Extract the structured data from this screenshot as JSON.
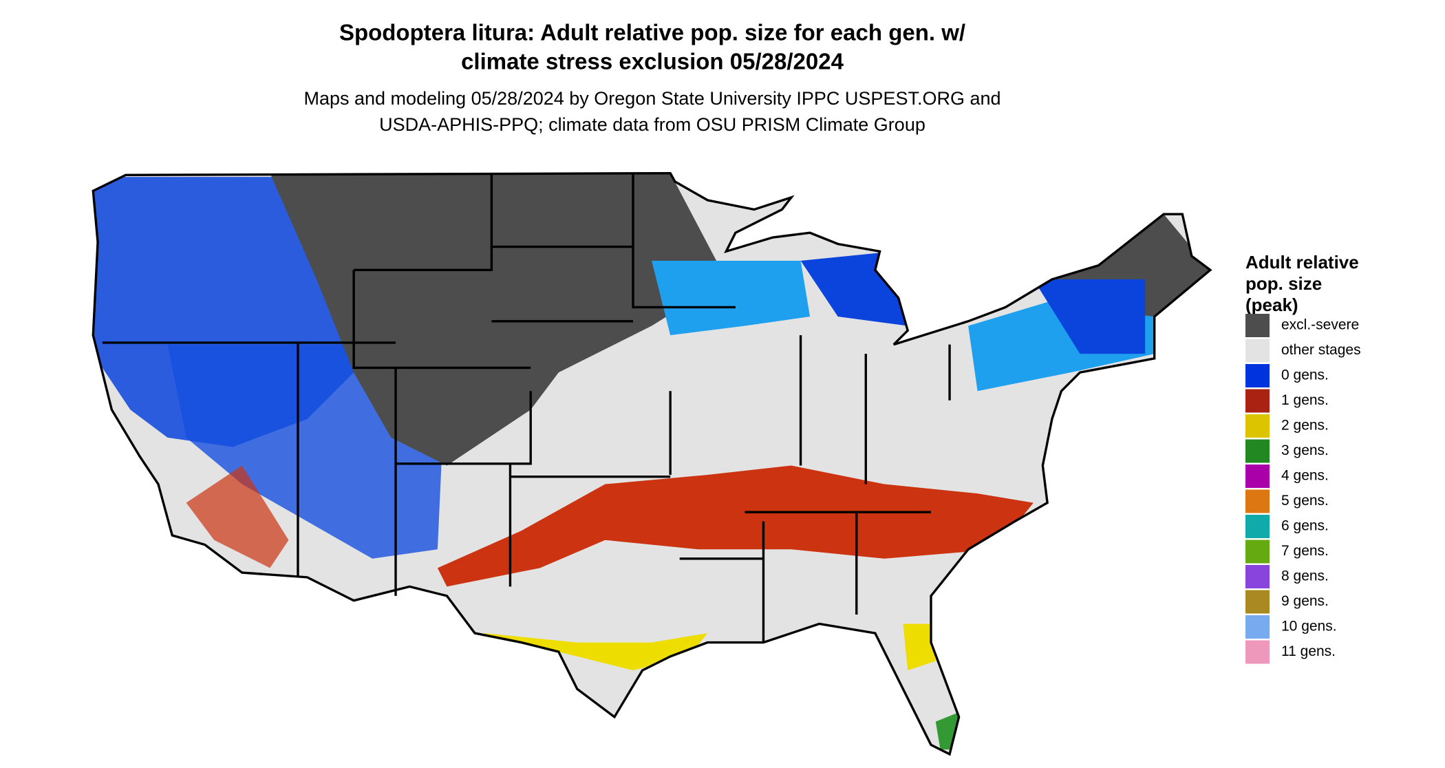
{
  "header": {
    "title": [
      "Spodoptera litura: Adult relative pop. size for each gen. w/",
      "climate stress exclusion 05/28/2024"
    ],
    "subtitle": [
      "Maps and modeling 05/28/2024 by Oregon State University IPPC USPEST.ORG and",
      "USDA-APHIS-PPQ; climate data from OSU PRISM Climate Group"
    ]
  },
  "legend": {
    "title": [
      "Adult relative",
      "pop. size",
      "(peak)"
    ],
    "items": [
      {
        "label": "excl.-severe",
        "color": "#4d4d4d"
      },
      {
        "label": "other stages",
        "color": "#e3e3e3"
      },
      {
        "label": "0 gens.",
        "color": "#0033dd"
      },
      {
        "label": "1 gens.",
        "color": "#aa2211"
      },
      {
        "label": "2 gens.",
        "color": "#ddc400"
      },
      {
        "label": "3 gens.",
        "color": "#228822"
      },
      {
        "label": "4 gens.",
        "color": "#aa00aa"
      },
      {
        "label": "5 gens.",
        "color": "#dd7711"
      },
      {
        "label": "6 gens.",
        "color": "#11aaaa"
      },
      {
        "label": "7 gens.",
        "color": "#66aa11"
      },
      {
        "label": "8 gens.",
        "color": "#8844dd"
      },
      {
        "label": "9 gens.",
        "color": "#aa8822"
      },
      {
        "label": "10 gens.",
        "color": "#77aaee"
      },
      {
        "label": "11 gens.",
        "color": "#ee99bb"
      }
    ]
  }
}
